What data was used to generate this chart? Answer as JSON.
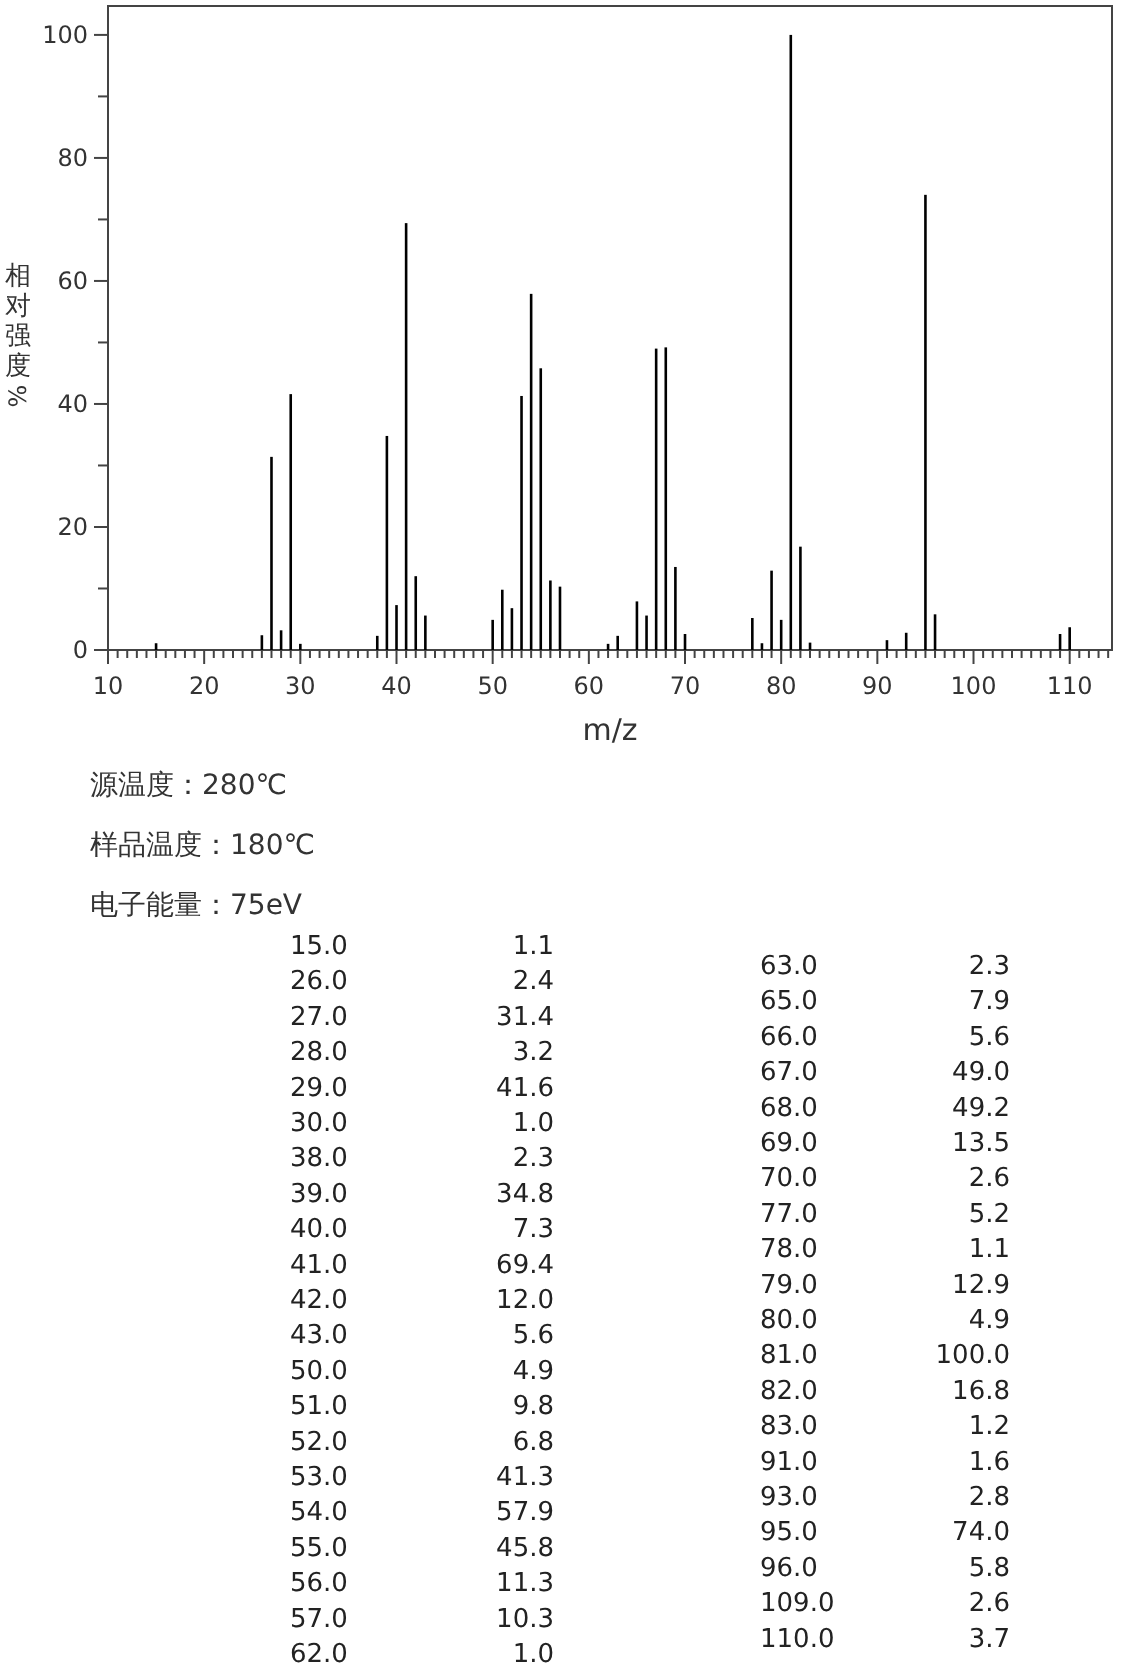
{
  "chart_data": {
    "type": "bar",
    "xlabel": "m/z",
    "ylabel": "相对强度%",
    "x": [
      15,
      26,
      27,
      28,
      29,
      30,
      38,
      39,
      40,
      41,
      42,
      43,
      50,
      51,
      52,
      53,
      54,
      55,
      56,
      57,
      62,
      63,
      65,
      66,
      67,
      68,
      69,
      70,
      77,
      78,
      79,
      80,
      81,
      82,
      83,
      91,
      93,
      95,
      96,
      109,
      110
    ],
    "series": [
      {
        "color": "#000000",
        "values": [
          1.1,
          2.4,
          31.4,
          3.2,
          41.6,
          1.0,
          2.3,
          34.8,
          7.3,
          69.4,
          12.0,
          5.6,
          4.9,
          9.8,
          6.8,
          41.3,
          57.9,
          45.8,
          11.3,
          10.3,
          1.0,
          2.3,
          7.9,
          5.6,
          49.0,
          49.2,
          13.5,
          2.6,
          5.2,
          1.1,
          12.9,
          4.9,
          100.0,
          16.8,
          1.2,
          1.6,
          2.8,
          74.0,
          5.8,
          2.6,
          3.7
        ]
      }
    ],
    "xlim": [
      10,
      114.4
    ],
    "ylim": [
      0,
      104.7
    ],
    "xticks": [
      10,
      {
        "value": 11,
        "label": null
      },
      {
        "value": 12,
        "label": null
      },
      {
        "value": 13,
        "label": null
      },
      {
        "value": 14,
        "label": null
      },
      {
        "value": 15,
        "label": null
      },
      {
        "value": 16,
        "label": null
      },
      {
        "value": 17,
        "label": null
      },
      {
        "value": 18,
        "label": null
      },
      {
        "value": 19,
        "label": null
      },
      20,
      {
        "value": 21,
        "label": null
      },
      {
        "value": 22,
        "label": null
      },
      {
        "value": 23,
        "label": null
      },
      {
        "value": 24,
        "label": null
      },
      {
        "value": 25,
        "label": null
      },
      {
        "value": 26,
        "label": null
      },
      {
        "value": 27,
        "label": null
      },
      {
        "value": 28,
        "label": null
      },
      {
        "value": 29,
        "label": null
      },
      30,
      {
        "value": 31,
        "label": null
      },
      {
        "value": 32,
        "label": null
      },
      {
        "value": 33,
        "label": null
      },
      {
        "value": 34,
        "label": null
      },
      {
        "value": 35,
        "label": null
      },
      {
        "value": 36,
        "label": null
      },
      {
        "value": 37,
        "label": null
      },
      {
        "value": 38,
        "label": null
      },
      {
        "value": 39,
        "label": null
      },
      40,
      {
        "value": 41,
        "label": null
      },
      {
        "value": 42,
        "label": null
      },
      {
        "value": 43,
        "label": null
      },
      {
        "value": 44,
        "label": null
      },
      {
        "value": 45,
        "label": null
      },
      {
        "value": 46,
        "label": null
      },
      {
        "value": 47,
        "label": null
      },
      {
        "value": 48,
        "label": null
      },
      {
        "value": 49,
        "label": null
      },
      50,
      {
        "value": 51,
        "label": null
      },
      {
        "value": 52,
        "label": null
      },
      {
        "value": 53,
        "label": null
      },
      {
        "value": 54,
        "label": null
      },
      {
        "value": 55,
        "label": null
      },
      {
        "value": 56,
        "label": null
      },
      {
        "value": 57,
        "label": null
      },
      {
        "value": 58,
        "label": null
      },
      {
        "value": 59,
        "label": null
      },
      60,
      {
        "value": 61,
        "label": null
      },
      {
        "value": 62,
        "label": null
      },
      {
        "value": 63,
        "label": null
      },
      {
        "value": 64,
        "label": null
      },
      {
        "value": 65,
        "label": null
      },
      {
        "value": 66,
        "label": null
      },
      {
        "value": 67,
        "label": null
      },
      {
        "value": 68,
        "label": null
      },
      {
        "value": 69,
        "label": null
      },
      70,
      {
        "value": 71,
        "label": null
      },
      {
        "value": 72,
        "label": null
      },
      {
        "value": 73,
        "label": null
      },
      {
        "value": 74,
        "label": null
      },
      {
        "value": 75,
        "label": null
      },
      {
        "value": 76,
        "label": null
      },
      {
        "value": 77,
        "label": null
      },
      {
        "value": 78,
        "label": null
      },
      {
        "value": 79,
        "label": null
      },
      80,
      {
        "value": 81,
        "label": null
      },
      {
        "value": 82,
        "label": null
      },
      {
        "value": 83,
        "label": null
      },
      {
        "value": 84,
        "label": null
      },
      {
        "value": 85,
        "label": null
      },
      {
        "value": 86,
        "label": null
      },
      {
        "value": 87,
        "label": null
      },
      {
        "value": 88,
        "label": null
      },
      {
        "value": 89,
        "label": null
      },
      90,
      {
        "value": 91,
        "label": null
      },
      {
        "value": 92,
        "label": null
      },
      {
        "value": 93,
        "label": null
      },
      {
        "value": 94,
        "label": null
      },
      {
        "value": 95,
        "label": null
      },
      {
        "value": 96,
        "label": null
      },
      {
        "value": 97,
        "label": null
      },
      {
        "value": 98,
        "label": null
      },
      {
        "value": 99,
        "label": null
      },
      100,
      {
        "value": 101,
        "label": null
      },
      {
        "value": 102,
        "label": null
      },
      {
        "value": 103,
        "label": null
      },
      {
        "value": 104,
        "label": null
      },
      {
        "value": 105,
        "label": null
      },
      {
        "value": 106,
        "label": null
      },
      {
        "value": 107,
        "label": null
      },
      {
        "value": 108,
        "label": null
      },
      {
        "value": 109,
        "label": null
      },
      110,
      {
        "value": 111,
        "label": null
      },
      {
        "value": 112,
        "label": null
      },
      {
        "value": 113,
        "label": null
      },
      {
        "value": 114,
        "label": null
      }
    ],
    "yticks": [
      0,
      {
        "value": 10,
        "label": null
      },
      20,
      {
        "value": 30,
        "label": null
      },
      40,
      {
        "value": 50,
        "label": null
      },
      60,
      {
        "value": 70,
        "label": null
      },
      80,
      {
        "value": 90,
        "label": null
      },
      100
    ],
    "grid": false,
    "annotations": [
      "源温度：280℃",
      "样品温度：180℃",
      "电子能量：75eV",
      "15.0",
      "26.0",
      "27.0",
      "28.0",
      "29.0",
      "30.0",
      "38.0",
      "39.0",
      "40.0",
      "41.0",
      "42.0",
      "43.0",
      "50.0",
      "51.0",
      "52.0",
      "53.0",
      "54.0",
      "55.0",
      "56.0",
      "57.0",
      "62.0",
      "63.0",
      "65.0",
      "66.0",
      "67.0",
      "68.0",
      "69.0",
      "70.0",
      "77.0",
      "78.0",
      "79.0",
      "80.0",
      "81.0",
      "82.0",
      "83.0",
      "91.0",
      "93.0",
      "95.0",
      "96.0",
      "109.0",
      "110.0",
      "1.1",
      "2.4",
      "31.4",
      "3.2",
      "41.6",
      "1.0",
      "2.3",
      "34.8",
      "7.3",
      "69.4",
      "12.0",
      "5.6",
      "4.9",
      "9.8",
      "6.8",
      "41.3",
      "57.9",
      "45.8",
      "11.3",
      "10.3",
      "1.0",
      "2.3",
      "7.9",
      "5.6",
      "49.0",
      "49.2",
      "13.5",
      "2.6",
      "5.2",
      "1.1",
      "12.9",
      "4.9",
      "100.0",
      "16.8",
      "1.2",
      "1.6",
      "2.8",
      "74.0",
      "5.8",
      "2.6",
      "3.7"
    ]
  }
}
